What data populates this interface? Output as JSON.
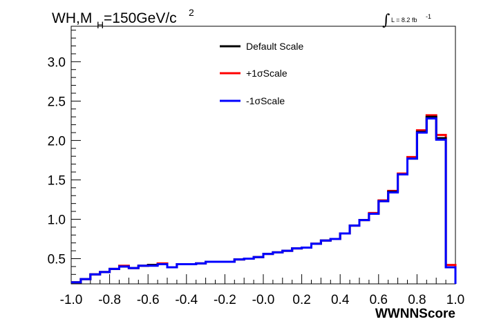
{
  "chart_data": {
    "type": "line",
    "title": "WH,M",
    "title_sub": "H",
    "title_rest": "=150GeV/c",
    "title_sup": "2",
    "luminosity": "L = 8.2 fb",
    "luminosity_sup": "-1",
    "xlabel": "WWNNScore",
    "ylabel": "",
    "xlim": [
      -1.0,
      1.0
    ],
    "ylim": [
      0.18,
      3.45
    ],
    "x_ticks": [
      "-1.0",
      "-0.8",
      "-0.6",
      "-0.4",
      "-0.2",
      "-0.0",
      "0.2",
      "0.4",
      "0.6",
      "0.8",
      "1.0"
    ],
    "y_ticks": [
      "0.5",
      "1.0",
      "1.5",
      "2.0",
      "2.5",
      "3.0"
    ],
    "legend_position": "top-center",
    "bin_edges": [
      -1.0,
      -0.95,
      -0.9,
      -0.85,
      -0.8,
      -0.75,
      -0.7,
      -0.65,
      -0.6,
      -0.55,
      -0.5,
      -0.45,
      -0.4,
      -0.35,
      -0.3,
      -0.25,
      -0.2,
      -0.15,
      -0.1,
      -0.05,
      0.0,
      0.05,
      0.1,
      0.15,
      0.2,
      0.25,
      0.3,
      0.35,
      0.4,
      0.45,
      0.5,
      0.55,
      0.6,
      0.65,
      0.7,
      0.75,
      0.8,
      0.85,
      0.9,
      0.95,
      1.0
    ],
    "series": [
      {
        "name": "Default Scale",
        "color": "#000000",
        "values": [
          0.2,
          0.24,
          0.3,
          0.33,
          0.37,
          0.4,
          0.38,
          0.41,
          0.42,
          0.43,
          0.39,
          0.43,
          0.43,
          0.44,
          0.46,
          0.46,
          0.46,
          0.49,
          0.5,
          0.52,
          0.56,
          0.58,
          0.6,
          0.63,
          0.64,
          0.69,
          0.73,
          0.75,
          0.82,
          0.92,
          0.99,
          1.07,
          1.23,
          1.35,
          1.57,
          1.77,
          2.11,
          2.3,
          2.03,
          0.39
        ]
      },
      {
        "name": "+1σScale",
        "color": "#ff0000",
        "values": [
          0.2,
          0.24,
          0.3,
          0.33,
          0.37,
          0.41,
          0.38,
          0.41,
          0.42,
          0.44,
          0.39,
          0.43,
          0.43,
          0.44,
          0.46,
          0.46,
          0.46,
          0.49,
          0.5,
          0.52,
          0.56,
          0.58,
          0.6,
          0.63,
          0.64,
          0.69,
          0.73,
          0.75,
          0.82,
          0.92,
          0.99,
          1.08,
          1.24,
          1.36,
          1.58,
          1.79,
          2.13,
          2.32,
          2.07,
          0.42
        ]
      },
      {
        "name": "-1σScale",
        "color": "#0000ff",
        "values": [
          0.2,
          0.24,
          0.3,
          0.33,
          0.37,
          0.4,
          0.38,
          0.41,
          0.41,
          0.43,
          0.39,
          0.43,
          0.43,
          0.44,
          0.46,
          0.46,
          0.46,
          0.49,
          0.5,
          0.52,
          0.56,
          0.58,
          0.6,
          0.63,
          0.64,
          0.69,
          0.73,
          0.75,
          0.82,
          0.92,
          0.99,
          1.07,
          1.23,
          1.34,
          1.57,
          1.77,
          2.1,
          2.28,
          2.01,
          0.39
        ]
      }
    ]
  }
}
